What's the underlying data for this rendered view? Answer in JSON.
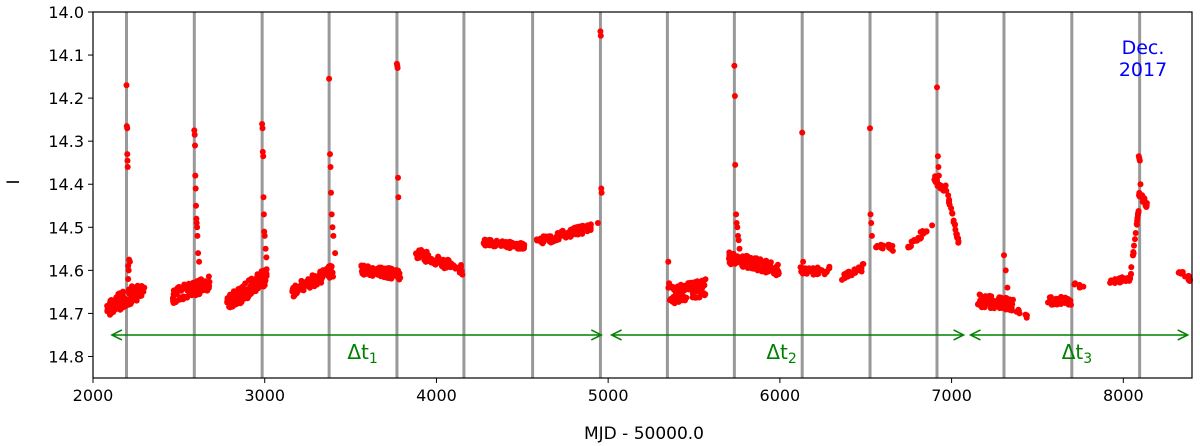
{
  "chart_data": {
    "type": "scatter",
    "title": "",
    "xlabel": "MJD - 50000.0",
    "ylabel": "I",
    "xlim": [
      2000,
      8400
    ],
    "ylim": [
      14.85,
      14.0
    ],
    "y_inverted": true,
    "x_ticks": [
      2000,
      3000,
      4000,
      5000,
      6000,
      7000,
      8000
    ],
    "x_tick_labels": [
      "2000",
      "3000",
      "4000",
      "5000",
      "6000",
      "7000",
      "8000"
    ],
    "y_ticks": [
      14.0,
      14.1,
      14.2,
      14.3,
      14.4,
      14.5,
      14.6,
      14.7,
      14.8
    ],
    "y_tick_labels": [
      "14.0",
      "14.1",
      "14.2",
      "14.3",
      "14.4",
      "14.5",
      "14.6",
      "14.7",
      "14.8"
    ],
    "grid": false,
    "point_color": "#ff0000",
    "vline_color": "#999999",
    "arrow_color": "#008000",
    "note_color": "#0000ff",
    "vertical_lines_x": [
      2195,
      2590,
      2985,
      3375,
      3770,
      4160,
      4560,
      4955,
      5345,
      5735,
      6130,
      6525,
      6915,
      7305,
      7700,
      8095
    ],
    "annotations": [
      {
        "label": "Δt",
        "subscript": "1",
        "x_start": 2110,
        "x_end": 4960,
        "y": 14.75,
        "label_x": 3570
      },
      {
        "label": "Δt",
        "subscript": "2",
        "x_start": 5020,
        "x_end": 7070,
        "y": 14.75,
        "label_x": 6010
      },
      {
        "label": "Δt",
        "subscript": "3",
        "x_start": 7110,
        "x_end": 8375,
        "y": 14.75,
        "label_x": 7730
      }
    ],
    "note_lines": [
      "Dec.",
      "2017"
    ],
    "series": [
      {
        "segments": [
          {
            "x0": 2080,
            "x1": 2300,
            "y0": 14.69,
            "y1": 14.64,
            "spread": 0.04,
            "n": 95
          },
          {
            "x0": 2460,
            "x1": 2680,
            "y0": 14.66,
            "y1": 14.63,
            "spread": 0.035,
            "n": 90
          },
          {
            "x0": 2780,
            "x1": 3020,
            "y0": 14.68,
            "y1": 14.61,
            "spread": 0.04,
            "n": 110
          },
          {
            "x0": 3160,
            "x1": 3400,
            "y0": 14.65,
            "y1": 14.6,
            "spread": 0.03,
            "n": 80
          },
          {
            "x0": 3560,
            "x1": 3790,
            "y0": 14.6,
            "y1": 14.61,
            "spread": 0.025,
            "n": 90
          },
          {
            "x0": 3880,
            "x1": 4160,
            "y0": 14.56,
            "y1": 14.6,
            "spread": 0.025,
            "n": 80
          },
          {
            "x0": 4270,
            "x1": 4520,
            "y0": 14.535,
            "y1": 14.545,
            "spread": 0.015,
            "n": 90
          },
          {
            "x0": 4580,
            "x1": 4900,
            "y0": 14.535,
            "y1": 14.5,
            "spread": 0.02,
            "n": 100
          },
          {
            "x0": 5350,
            "x1": 5570,
            "y0": 14.66,
            "y1": 14.64,
            "spread": 0.04,
            "n": 100
          },
          {
            "x0": 5700,
            "x1": 6000,
            "y0": 14.57,
            "y1": 14.6,
            "spread": 0.03,
            "n": 110
          },
          {
            "x0": 6120,
            "x1": 6290,
            "y0": 14.6,
            "y1": 14.6,
            "spread": 0.02,
            "n": 40
          },
          {
            "x0": 6360,
            "x1": 6500,
            "y0": 14.62,
            "y1": 14.59,
            "spread": 0.02,
            "n": 25
          },
          {
            "x0": 6550,
            "x1": 6660,
            "y0": 14.54,
            "y1": 14.55,
            "spread": 0.015,
            "n": 15
          },
          {
            "x0": 6740,
            "x1": 6890,
            "y0": 14.55,
            "y1": 14.49,
            "spread": 0.015,
            "n": 18
          },
          {
            "x0": 6900,
            "x1": 6970,
            "y0": 14.39,
            "y1": 14.41,
            "spread": 0.02,
            "n": 25
          },
          {
            "x0": 6980,
            "x1": 7050,
            "y0": 14.43,
            "y1": 14.55,
            "spread": 0.01,
            "n": 22
          },
          {
            "x0": 7150,
            "x1": 7360,
            "y0": 14.67,
            "y1": 14.68,
            "spread": 0.03,
            "n": 70
          },
          {
            "x0": 7370,
            "x1": 7440,
            "y0": 14.69,
            "y1": 14.71,
            "spread": 0.01,
            "n": 8
          },
          {
            "x0": 7560,
            "x1": 7700,
            "y0": 14.67,
            "y1": 14.67,
            "spread": 0.02,
            "n": 25
          },
          {
            "x0": 7710,
            "x1": 7780,
            "y0": 14.63,
            "y1": 14.64,
            "spread": 0.01,
            "n": 8
          },
          {
            "x0": 7920,
            "x1": 8040,
            "y0": 14.625,
            "y1": 14.62,
            "spread": 0.012,
            "n": 30
          },
          {
            "x0": 8040,
            "x1": 8090,
            "y0": 14.62,
            "y1": 14.46,
            "spread": 0.015,
            "n": 20
          },
          {
            "x0": 8090,
            "x1": 8140,
            "y0": 14.42,
            "y1": 14.45,
            "spread": 0.015,
            "n": 25
          },
          {
            "x0": 8320,
            "x1": 8390,
            "y0": 14.6,
            "y1": 14.62,
            "spread": 0.012,
            "n": 15
          }
        ],
        "points": [
          [
            2195,
            14.17
          ],
          [
            2197,
            14.265
          ],
          [
            2199,
            14.27
          ],
          [
            2200,
            14.33
          ],
          [
            2201,
            14.345
          ],
          [
            2202,
            14.36
          ],
          [
            2205,
            14.59
          ],
          [
            2210,
            14.575
          ],
          [
            2215,
            14.58
          ],
          [
            2205,
            14.62
          ],
          [
            2208,
            14.6
          ],
          [
            2590,
            14.275
          ],
          [
            2592,
            14.285
          ],
          [
            2594,
            14.31
          ],
          [
            2596,
            14.38
          ],
          [
            2598,
            14.41
          ],
          [
            2600,
            14.45
          ],
          [
            2602,
            14.48
          ],
          [
            2604,
            14.49
          ],
          [
            2606,
            14.5
          ],
          [
            2608,
            14.52
          ],
          [
            2612,
            14.56
          ],
          [
            2618,
            14.58
          ],
          [
            2985,
            14.26
          ],
          [
            2987,
            14.27
          ],
          [
            2989,
            14.325
          ],
          [
            2991,
            14.335
          ],
          [
            2993,
            14.43
          ],
          [
            2995,
            14.47
          ],
          [
            2997,
            14.51
          ],
          [
            3000,
            14.52
          ],
          [
            3005,
            14.55
          ],
          [
            3010,
            14.57
          ],
          [
            3375,
            14.155
          ],
          [
            3380,
            14.33
          ],
          [
            3383,
            14.36
          ],
          [
            3386,
            14.42
          ],
          [
            3390,
            14.47
          ],
          [
            3395,
            14.5
          ],
          [
            3400,
            14.52
          ],
          [
            3410,
            14.56
          ],
          [
            3770,
            14.12
          ],
          [
            3772,
            14.125
          ],
          [
            3774,
            14.13
          ],
          [
            3776,
            14.385
          ],
          [
            3778,
            14.43
          ],
          [
            4955,
            14.045
          ],
          [
            4957,
            14.055
          ],
          [
            4960,
            14.41
          ],
          [
            4962,
            14.42
          ],
          [
            4940,
            14.49
          ],
          [
            5350,
            14.58
          ],
          [
            5355,
            14.63
          ],
          [
            5735,
            14.125
          ],
          [
            5738,
            14.195
          ],
          [
            5740,
            14.355
          ],
          [
            5745,
            14.47
          ],
          [
            5748,
            14.49
          ],
          [
            5752,
            14.5
          ],
          [
            5756,
            14.52
          ],
          [
            5760,
            14.53
          ],
          [
            5765,
            14.55
          ],
          [
            6130,
            14.28
          ],
          [
            6135,
            14.58
          ],
          [
            6525,
            14.27
          ],
          [
            6528,
            14.47
          ],
          [
            6532,
            14.49
          ],
          [
            6536,
            14.52
          ],
          [
            6915,
            14.175
          ],
          [
            6920,
            14.335
          ],
          [
            6923,
            14.36
          ],
          [
            6926,
            14.38
          ],
          [
            7305,
            14.565
          ],
          [
            7315,
            14.6
          ],
          [
            7325,
            14.64
          ],
          [
            8090,
            14.335
          ],
          [
            8093,
            14.34
          ],
          [
            8096,
            14.345
          ],
          [
            8100,
            14.4
          ]
        ]
      }
    ]
  }
}
